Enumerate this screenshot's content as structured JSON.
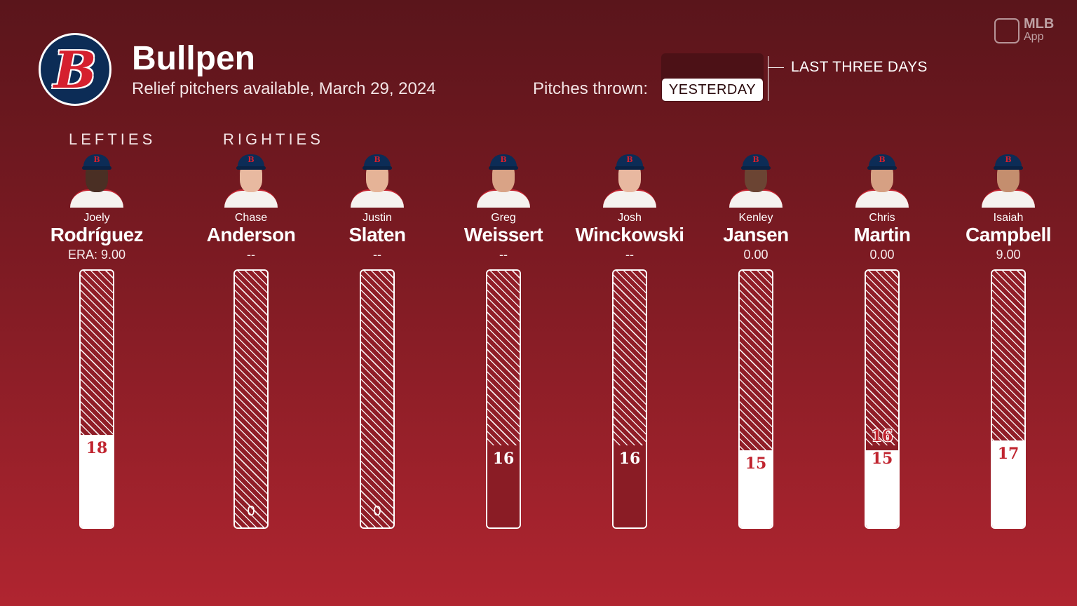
{
  "header": {
    "title": "Bullpen",
    "subtitle": "Relief pitchers available, March 29, 2024",
    "pitches_label": "Pitches thrown:",
    "toggle_selected": "YESTERDAY",
    "toggle_other": "LAST THREE DAYS"
  },
  "branding": {
    "mlb": "MLB",
    "app": "App",
    "team_logo_letter": "B"
  },
  "groups": {
    "lefties": "LEFTIES",
    "righties": "RIGHTIES"
  },
  "colors": {
    "background_top": "#5a151b",
    "background_bottom": "#b02530",
    "team_navy": "#0c2c56",
    "team_red": "#d5202e",
    "fill_yesterday": "#ffffff",
    "fill_prior_days": "#8a1c25"
  },
  "pitchers": [
    {
      "first": "Joely",
      "last": "Rodríguez",
      "stat": "ERA: 9.00",
      "skin": "#4a2f24"
    },
    {
      "first": "Chase",
      "last": "Anderson",
      "stat": "--",
      "skin": "#e8b9a0"
    },
    {
      "first": "Justin",
      "last": "Slaten",
      "stat": "--",
      "skin": "#e5b397"
    },
    {
      "first": "Greg",
      "last": "Weissert",
      "stat": "--",
      "skin": "#d9a386"
    },
    {
      "first": "Josh",
      "last": "Winckowski",
      "stat": "--",
      "skin": "#e8b8a0"
    },
    {
      "first": "Kenley",
      "last": "Jansen",
      "stat": "0.00",
      "skin": "#6b4433"
    },
    {
      "first": "Chris",
      "last": "Martin",
      "stat": "0.00",
      "skin": "#d6a083"
    },
    {
      "first": "Isaiah",
      "last": "Campbell",
      "stat": "9.00",
      "skin": "#c48e6e"
    }
  ],
  "chart_data": {
    "type": "bar",
    "categories": [
      "Joely Rodríguez",
      "Chase Anderson",
      "Justin Slaten",
      "Greg Weissert",
      "Josh Winckowski",
      "Kenley Jansen",
      "Chris Martin",
      "Isaiah Campbell"
    ],
    "ylim": [
      0,
      50
    ],
    "series": [
      {
        "values": [
          18,
          0,
          0,
          0,
          0,
          15,
          15,
          17
        ]
      },
      {
        "values": [
          0,
          0,
          0,
          16,
          16,
          0,
          1,
          0
        ]
      }
    ],
    "labels": [
      {
        "text": "18",
        "anchor": "top",
        "style": "on-white"
      },
      {
        "text": "0",
        "anchor": "bottom",
        "style": "zero"
      },
      {
        "text": "0",
        "anchor": "bottom",
        "style": "zero"
      },
      {
        "text": "16",
        "anchor": "top",
        "style": "on-dark"
      },
      {
        "text": "16",
        "anchor": "top",
        "style": "on-dark"
      },
      {
        "text": "15",
        "anchor": "top",
        "style": "on-white"
      },
      {
        "text": "15",
        "anchor": "top",
        "style": "on-white",
        "extra": "16"
      },
      {
        "text": "17",
        "anchor": "top",
        "style": "on-white"
      }
    ]
  }
}
